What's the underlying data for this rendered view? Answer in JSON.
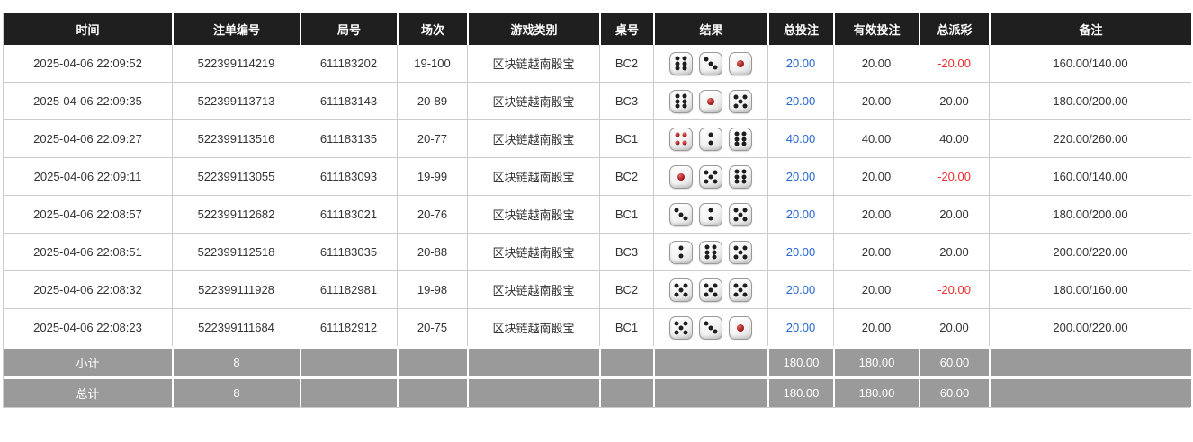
{
  "colors": {
    "header_bg": "#1f1f1f",
    "header_text": "#ffffff",
    "footer_bg": "#9a9a9a",
    "bet_blue": "#2667d3",
    "loss_red": "#ea2f2f",
    "pip_black": "#1d1d1d",
    "pip_red": "#a01616",
    "grid_border": "#cccccc"
  },
  "table": {
    "columns": [
      {
        "key": "time",
        "label": "时间"
      },
      {
        "key": "bet_id",
        "label": "注单编号"
      },
      {
        "key": "round_id",
        "label": "局号"
      },
      {
        "key": "session",
        "label": "场次"
      },
      {
        "key": "game_type",
        "label": "游戏类别"
      },
      {
        "key": "table_no",
        "label": "桌号"
      },
      {
        "key": "result",
        "label": "结果"
      },
      {
        "key": "total_bet",
        "label": "总投注"
      },
      {
        "key": "valid_bet",
        "label": "有效投注"
      },
      {
        "key": "total_payout",
        "label": "总派彩"
      },
      {
        "key": "remark",
        "label": "备注"
      }
    ],
    "rows": [
      {
        "time": "2025-04-06 22:09:52",
        "bet_id": "522399114219",
        "round_id": "611183202",
        "session": "19-100",
        "game_type": "区块链越南骰宝",
        "table_no": "BC2",
        "dice": [
          6,
          3,
          1
        ],
        "total_bet": "20.00",
        "valid_bet": "20.00",
        "total_payout": "-20.00",
        "remark": "160.00/140.00"
      },
      {
        "time": "2025-04-06 22:09:35",
        "bet_id": "522399113713",
        "round_id": "611183143",
        "session": "20-89",
        "game_type": "区块链越南骰宝",
        "table_no": "BC3",
        "dice": [
          6,
          1,
          5
        ],
        "total_bet": "20.00",
        "valid_bet": "20.00",
        "total_payout": "20.00",
        "remark": "180.00/200.00"
      },
      {
        "time": "2025-04-06 22:09:27",
        "bet_id": "522399113516",
        "round_id": "611183135",
        "session": "20-77",
        "game_type": "区块链越南骰宝",
        "table_no": "BC1",
        "dice": [
          4,
          2,
          6
        ],
        "total_bet": "40.00",
        "valid_bet": "40.00",
        "total_payout": "40.00",
        "remark": "220.00/260.00"
      },
      {
        "time": "2025-04-06 22:09:11",
        "bet_id": "522399113055",
        "round_id": "611183093",
        "session": "19-99",
        "game_type": "区块链越南骰宝",
        "table_no": "BC2",
        "dice": [
          1,
          5,
          6
        ],
        "total_bet": "20.00",
        "valid_bet": "20.00",
        "total_payout": "-20.00",
        "remark": "160.00/140.00"
      },
      {
        "time": "2025-04-06 22:08:57",
        "bet_id": "522399112682",
        "round_id": "611183021",
        "session": "20-76",
        "game_type": "区块链越南骰宝",
        "table_no": "BC1",
        "dice": [
          3,
          2,
          5
        ],
        "total_bet": "20.00",
        "valid_bet": "20.00",
        "total_payout": "20.00",
        "remark": "180.00/200.00"
      },
      {
        "time": "2025-04-06 22:08:51",
        "bet_id": "522399112518",
        "round_id": "611183035",
        "session": "20-88",
        "game_type": "区块链越南骰宝",
        "table_no": "BC3",
        "dice": [
          2,
          6,
          5
        ],
        "total_bet": "20.00",
        "valid_bet": "20.00",
        "total_payout": "20.00",
        "remark": "200.00/220.00"
      },
      {
        "time": "2025-04-06 22:08:32",
        "bet_id": "522399111928",
        "round_id": "611182981",
        "session": "19-98",
        "game_type": "区块链越南骰宝",
        "table_no": "BC2",
        "dice": [
          5,
          5,
          5
        ],
        "total_bet": "20.00",
        "valid_bet": "20.00",
        "total_payout": "-20.00",
        "remark": "180.00/160.00"
      },
      {
        "time": "2025-04-06 22:08:23",
        "bet_id": "522399111684",
        "round_id": "611182912",
        "session": "20-75",
        "game_type": "区块链越南骰宝",
        "table_no": "BC1",
        "dice": [
          5,
          3,
          1
        ],
        "total_bet": "20.00",
        "valid_bet": "20.00",
        "total_payout": "20.00",
        "remark": "200.00/220.00"
      }
    ],
    "footer": [
      {
        "label": "小计",
        "count": "8",
        "total_bet": "180.00",
        "valid_bet": "180.00",
        "total_payout": "60.00"
      },
      {
        "label": "总计",
        "count": "8",
        "total_bet": "180.00",
        "valid_bet": "180.00",
        "total_payout": "60.00"
      }
    ]
  }
}
